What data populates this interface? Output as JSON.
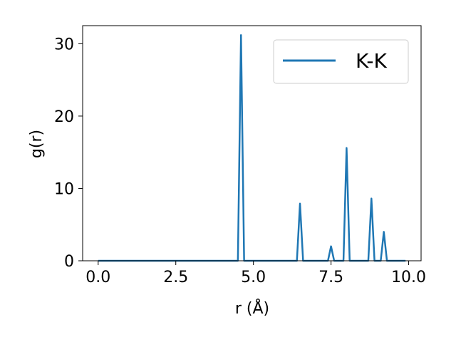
{
  "chart_data": {
    "type": "line",
    "title": "",
    "xlabel": "r (Å)",
    "ylabel": "g(r)",
    "xlim": [
      -0.5,
      10.4
    ],
    "ylim": [
      0,
      32.5
    ],
    "xticks": [
      0.0,
      2.5,
      5.0,
      7.5,
      10.0
    ],
    "xtick_labels": [
      "0.0",
      "2.5",
      "5.0",
      "7.5",
      "10.0"
    ],
    "yticks": [
      0,
      10,
      20,
      30
    ],
    "ytick_labels": [
      "0",
      "10",
      "20",
      "30"
    ],
    "grid": false,
    "legend_position": "top-right",
    "series": [
      {
        "name": "K-K",
        "color": "#1f77b4",
        "x": [
          0.0,
          4.5,
          4.6,
          4.7,
          6.4,
          6.5,
          6.6,
          7.4,
          7.5,
          7.6,
          7.9,
          8.0,
          8.1,
          8.7,
          8.8,
          8.9,
          9.1,
          9.2,
          9.3,
          9.9
        ],
        "y": [
          0.0,
          0.0,
          31.2,
          0.0,
          0.0,
          7.9,
          0.0,
          0.0,
          2.0,
          0.0,
          0.0,
          15.6,
          0.0,
          0.0,
          8.6,
          0.0,
          0.0,
          4.0,
          0.0,
          0.0
        ]
      }
    ]
  }
}
